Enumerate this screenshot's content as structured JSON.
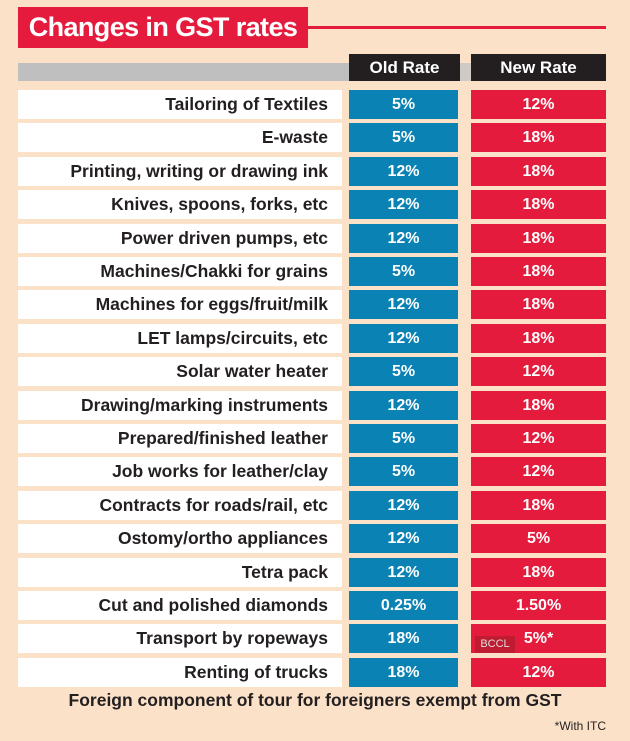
{
  "chart_data": {
    "type": "table",
    "title": "Changes in GST rates",
    "columns": [
      "Old Rate",
      "New Rate"
    ],
    "rows": [
      {
        "item": "Tailoring of Textiles",
        "old": "5%",
        "new": "12%"
      },
      {
        "item": "E-waste",
        "old": "5%",
        "new": "18%"
      },
      {
        "item": "Printing, writing or drawing ink",
        "old": "12%",
        "new": "18%"
      },
      {
        "item": "Knives, spoons, forks, etc",
        "old": "12%",
        "new": "18%"
      },
      {
        "item": "Power driven pumps, etc",
        "old": "12%",
        "new": "18%"
      },
      {
        "item": "Machines/Chakki for grains",
        "old": "5%",
        "new": "18%"
      },
      {
        "item": "Machines for eggs/fruit/milk",
        "old": "12%",
        "new": "18%"
      },
      {
        "item": "LET lamps/circuits, etc",
        "old": "12%",
        "new": "18%"
      },
      {
        "item": "Solar water heater",
        "old": "5%",
        "new": "12%"
      },
      {
        "item": "Drawing/marking instruments",
        "old": "12%",
        "new": "18%"
      },
      {
        "item": "Prepared/finished leather",
        "old": "5%",
        "new": "12%"
      },
      {
        "item": "Job works for leather/clay",
        "old": "5%",
        "new": "12%"
      },
      {
        "item": "Contracts for roads/rail, etc",
        "old": "12%",
        "new": "18%"
      },
      {
        "item": "Ostomy/ortho appliances",
        "old": "12%",
        "new": "5%"
      },
      {
        "item": "Tetra pack",
        "old": "12%",
        "new": "18%"
      },
      {
        "item": "Cut and polished diamonds",
        "old": "0.25%",
        "new": "1.50%"
      },
      {
        "item": "Transport by ropeways",
        "old": "18%",
        "new": "5%*"
      },
      {
        "item": "Renting of trucks",
        "old": "18%",
        "new": "12%"
      }
    ],
    "footer": "Foreign component of tour for foreigners exempt from GST",
    "footnote": "*With ITC",
    "watermark": "BCCL",
    "colors": {
      "old": "#0a83b4",
      "new": "#e51b3d",
      "header": "#231f20",
      "background": "#fce1c9"
    }
  }
}
